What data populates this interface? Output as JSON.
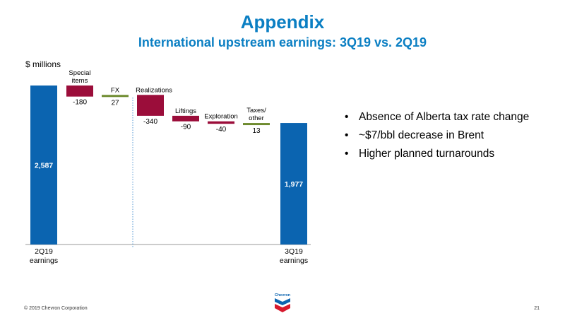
{
  "slide": {
    "title": "Appendix",
    "subtitle": "International upstream earnings: 3Q19 vs. 2Q19",
    "units_label": "$ millions",
    "bullets": [
      "Absence of Alberta tax rate change",
      "~$7/bbl decrease in Brent",
      "Higher planned turnarounds"
    ],
    "footer": "© 2019 Chevron Corporation",
    "page_number": "21",
    "logo_text": "Chevron"
  },
  "colors": {
    "title": "#0b7fc3",
    "total_bar": "#0b64b0",
    "decrease": "#9b0d3a",
    "increase": "#6e8b2f",
    "divider": "#5a9bd5"
  },
  "chart_data": {
    "type": "bar",
    "subtype": "waterfall",
    "ylim": [
      0,
      2587
    ],
    "steps": [
      {
        "name": "2Q19 earnings",
        "label_lines": [
          "2Q19",
          "earnings"
        ],
        "kind": "total",
        "value": 2587,
        "value_label": "2,587"
      },
      {
        "name": "Special items",
        "label_lines": [
          "Special",
          "items"
        ],
        "kind": "delta",
        "value": -180,
        "value_label": "-180"
      },
      {
        "name": "FX",
        "label_lines": [
          "FX"
        ],
        "kind": "delta",
        "value": 27,
        "value_label": "27"
      },
      {
        "name": "Realizations",
        "label_lines": [
          "Realizations"
        ],
        "kind": "delta",
        "value": -340,
        "value_label": "-340"
      },
      {
        "name": "Liftings",
        "label_lines": [
          "Liftings"
        ],
        "kind": "delta",
        "value": -90,
        "value_label": "-90"
      },
      {
        "name": "Exploration",
        "label_lines": [
          "Exploration"
        ],
        "kind": "delta",
        "value": -40,
        "value_label": "-40"
      },
      {
        "name": "Taxes/ other",
        "label_lines": [
          "Taxes/",
          "other"
        ],
        "kind": "delta",
        "value": 13,
        "value_label": "13"
      },
      {
        "name": "3Q19 earnings",
        "label_lines": [
          "3Q19",
          "earnings"
        ],
        "kind": "total",
        "value": 1977,
        "value_label": "1,977"
      }
    ],
    "divider_after_step": 2,
    "grid": false
  }
}
